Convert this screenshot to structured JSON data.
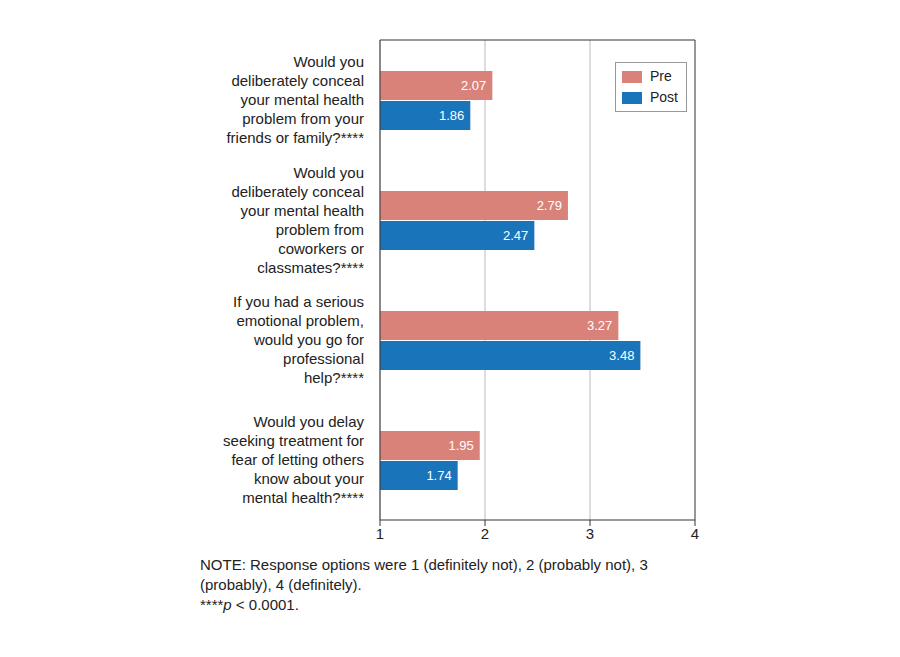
{
  "chart_data": {
    "type": "bar",
    "orientation": "horizontal",
    "categories": [
      "Would you deliberately conceal your mental health problem from your friends or family?****",
      "Would you deliberately conceal your mental health problem from coworkers or classmates?****",
      "If you had a serious emotional problem, would you go for professional help?****",
      "Would you delay seeking treatment for fear of letting others know about your mental health?****"
    ],
    "series": [
      {
        "name": "Pre",
        "color": "#d9827a",
        "values": [
          2.07,
          2.79,
          3.27,
          1.95
        ]
      },
      {
        "name": "Post",
        "color": "#1a74b9",
        "values": [
          1.86,
          2.47,
          3.48,
          1.74
        ]
      }
    ],
    "xlim": [
      1,
      4
    ],
    "xticks": [
      1,
      2,
      3,
      4
    ],
    "grid": true,
    "legend": "upper right",
    "data_labels": true,
    "annotations": [
      "NOTE: Response options were 1 (definitely not), 2 (probably not), 3 (probably), 4 (definitely).",
      "****p < 0.0001."
    ]
  }
}
